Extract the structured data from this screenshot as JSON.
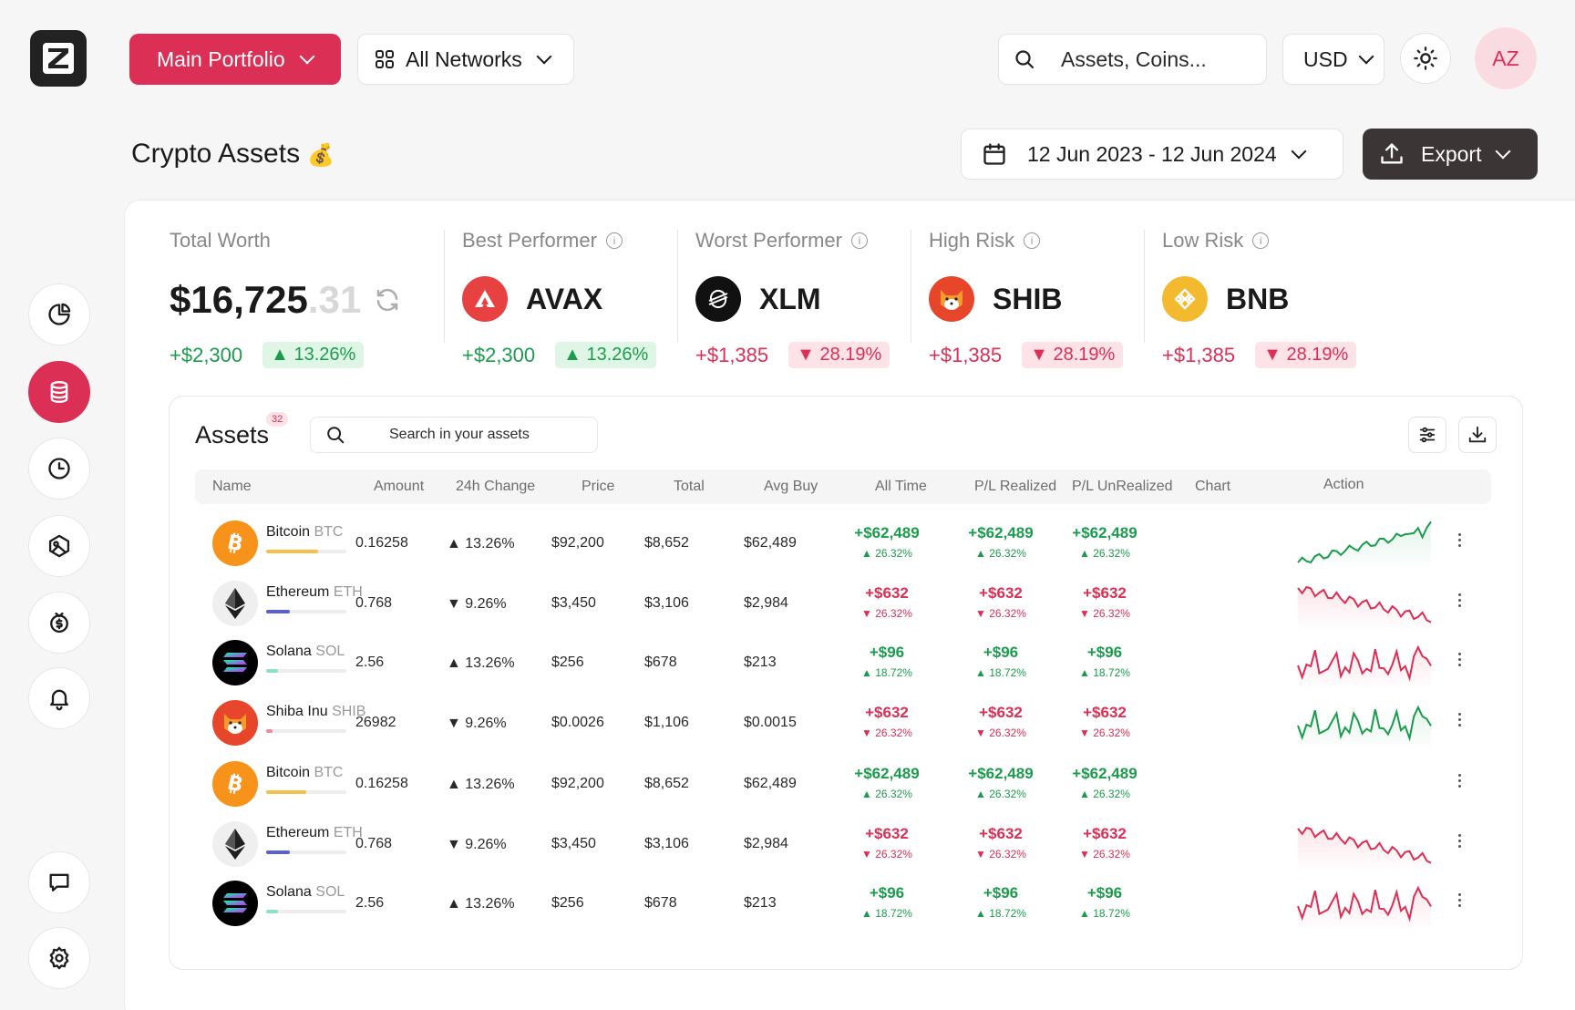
{
  "header": {
    "portfolio": "Main Portfolio",
    "networks": "All Networks",
    "search_placeholder": "Assets, Coins...",
    "currency": "USD",
    "avatar": "AZ"
  },
  "page": {
    "title": "Crypto Assets",
    "title_emoji": "💰",
    "date_range": "12 Jun 2023 - 12 Jun 2024",
    "export": "Export"
  },
  "stats": {
    "total": {
      "label": "Total Worth",
      "value_main": "$16,725",
      "value_dec": ".31",
      "change": "+$2,300",
      "pct": "▲ 13.26%"
    },
    "best": {
      "label": "Best Performer",
      "symbol": "AVAX",
      "change": "+$2,300",
      "pct": "▲ 13.26%"
    },
    "worst": {
      "label": "Worst Performer",
      "symbol": "XLM",
      "change": "+$1,385",
      "pct": "▼ 28.19%"
    },
    "high": {
      "label": "High Risk",
      "symbol": "SHIB",
      "change": "+$1,385",
      "pct": "▼ 28.19%"
    },
    "low": {
      "label": "Low Risk",
      "symbol": "BNB",
      "change": "+$1,385",
      "pct": "▼ 28.19%"
    }
  },
  "assets": {
    "title": "Assets",
    "count": "32",
    "search_placeholder": "Search in your assets",
    "columns": [
      "Name",
      "Amount",
      "24h Change",
      "Price",
      "Total",
      "Avg Buy",
      "All Time",
      "P/L Realized",
      "P/L UnRealized",
      "Chart",
      "Action"
    ],
    "rows": [
      {
        "name": "Bitcoin",
        "sym": "BTC",
        "coin": "btc",
        "holding": 0.65,
        "amount": "0.16258",
        "change": "▲ 13.26%",
        "dir": "up",
        "price": "$92,200",
        "total": "$8,652",
        "avg": "$62,489",
        "pl": "+$62,489",
        "plp": "▲ 26.32%",
        "chart": "up"
      },
      {
        "name": "Ethereum",
        "sym": "ETH",
        "coin": "eth",
        "holding": 0.3,
        "amount": "0.768",
        "change": "▼ 9.26%",
        "dir": "down",
        "price": "$3,450",
        "total": "$3,106",
        "avg": "$2,984",
        "pl": "+$632",
        "plp": "▼ 26.32%",
        "chart": "down"
      },
      {
        "name": "Solana",
        "sym": "SOL",
        "coin": "sol",
        "holding": 0.15,
        "amount": "2.56",
        "change": "▲ 13.26%",
        "dir": "up",
        "price": "$256",
        "total": "$678",
        "avg": "$213",
        "pl": "+$96",
        "plp": "▲ 18.72%",
        "chart": "volatile-red"
      },
      {
        "name": "Shiba Inu",
        "sym": "SHIB",
        "coin": "shib",
        "holding": 0.08,
        "amount": "26982",
        "change": "▼ 9.26%",
        "dir": "down",
        "price": "$0.0026",
        "total": "$1,106",
        "avg": "$0.0015",
        "pl": "+$632",
        "plp": "▼ 26.32%",
        "chart": "volatile-green"
      },
      {
        "name": "Bitcoin",
        "sym": "BTC",
        "coin": "btc",
        "holding": 0.5,
        "amount": "0.16258",
        "change": "▲ 13.26%",
        "dir": "up",
        "price": "$92,200",
        "total": "$8,652",
        "avg": "$62,489",
        "pl": "+$62,489",
        "plp": "▲ 26.32%",
        "chart": "none"
      },
      {
        "name": "Ethereum",
        "sym": "ETH",
        "coin": "eth",
        "holding": 0.3,
        "amount": "0.768",
        "change": "▼ 9.26%",
        "dir": "down",
        "price": "$3,450",
        "total": "$3,106",
        "avg": "$2,984",
        "pl": "+$632",
        "plp": "▼ 26.32%",
        "chart": "down"
      },
      {
        "name": "Solana",
        "sym": "SOL",
        "coin": "sol",
        "holding": 0.15,
        "amount": "2.56",
        "change": "▲ 13.26%",
        "dir": "up",
        "price": "$256",
        "total": "$678",
        "avg": "$213",
        "pl": "+$96",
        "plp": "▲ 18.72%",
        "chart": "volatile-red"
      }
    ]
  },
  "colors": {
    "accent": "#dc2f55",
    "positive": "#1b9c4c",
    "dark": "#3b3535"
  },
  "icons": {
    "sidebar": [
      "pie-chart-icon",
      "database-icon",
      "clock-icon",
      "nft-icon",
      "money-icon",
      "bell-icon",
      "chat-icon",
      "gear-icon"
    ]
  }
}
